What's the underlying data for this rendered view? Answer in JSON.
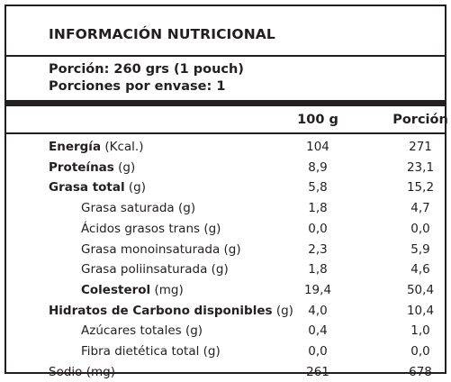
{
  "title": "INFORMACIÓN NUTRICIONAL",
  "serving": {
    "portion": "Porción: 260 grs (1 pouch)",
    "per_package": "Porciones por envase: 1"
  },
  "columns": {
    "per100": "100 g",
    "portion": "Porción"
  },
  "rows": [
    {
      "name": "Energía",
      "unit": "(Kcal.)",
      "bold": true,
      "indent": false,
      "v100": "104",
      "vpor": "271"
    },
    {
      "name": "Proteínas",
      "unit": "(g)",
      "bold": true,
      "indent": false,
      "v100": "8,9",
      "vpor": "23,1"
    },
    {
      "name": "Grasa total",
      "unit": "(g)",
      "bold": true,
      "indent": false,
      "v100": "5,8",
      "vpor": "15,2"
    },
    {
      "name": "Grasa saturada",
      "unit": "(g)",
      "bold": false,
      "indent": true,
      "v100": "1,8",
      "vpor": "4,7"
    },
    {
      "name": "Ácidos grasos trans",
      "unit": "(g)",
      "bold": false,
      "indent": true,
      "v100": "0,0",
      "vpor": "0,0"
    },
    {
      "name": "Grasa monoinsaturada",
      "unit": "(g)",
      "bold": false,
      "indent": true,
      "v100": "2,3",
      "vpor": "5,9"
    },
    {
      "name": "Grasa poliinsaturada",
      "unit": "(g)",
      "bold": false,
      "indent": true,
      "v100": "1,8",
      "vpor": "4,6"
    },
    {
      "name": "Colesterol",
      "unit": "(mg)",
      "bold": true,
      "indent": true,
      "v100": "19,4",
      "vpor": "50,4"
    },
    {
      "name": "Hidratos de Carbono disponibles",
      "unit": "(g)",
      "bold": true,
      "indent": false,
      "v100": "4,0",
      "vpor": "10,4"
    },
    {
      "name": "Azúcares totales",
      "unit": "(g)",
      "bold": false,
      "indent": true,
      "v100": "0,4",
      "vpor": "1,0"
    },
    {
      "name": "Fibra dietética total",
      "unit": "(g)",
      "bold": false,
      "indent": true,
      "v100": "0,0",
      "vpor": "0,0"
    },
    {
      "name": "Sodio",
      "unit": "(mg)",
      "bold": false,
      "indent": false,
      "v100": "261",
      "vpor": "678"
    }
  ]
}
